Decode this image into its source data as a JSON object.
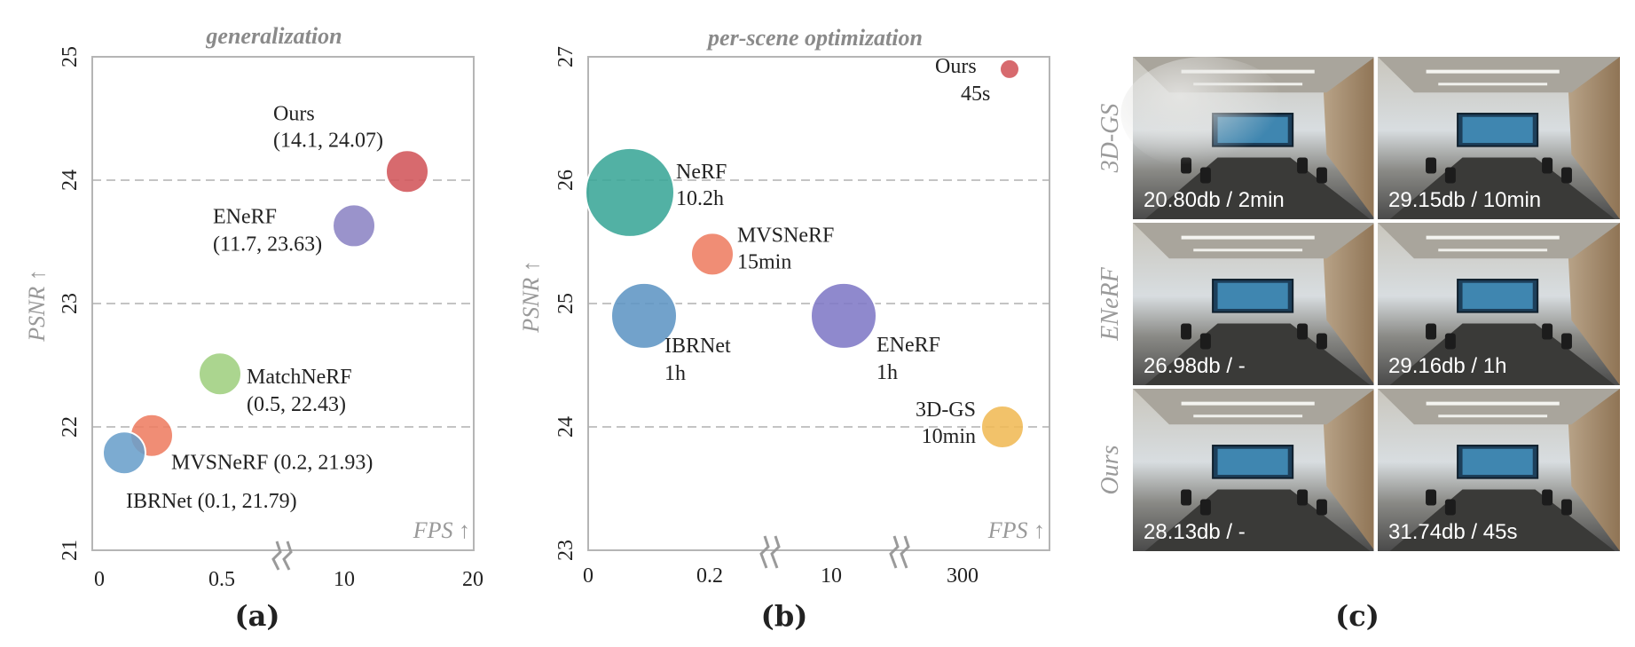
{
  "chart_data": [
    {
      "type": "scatter",
      "panel": "(a)",
      "title": "generalization",
      "xlabel": "FPS ↑",
      "ylabel": "PSNR ↑",
      "ylim": [
        21,
        25
      ],
      "yticks": [
        "21",
        "22",
        "23",
        "24",
        "25"
      ],
      "xticks": [
        "0",
        "0.5",
        "10",
        "20"
      ],
      "grid_y": [
        22,
        23,
        24
      ],
      "points": [
        {
          "name": "Ours",
          "label1": "Ours",
          "label2": "(14.1, 24.07)",
          "fps": 14.1,
          "psnr": 24.07,
          "color": "#d2555a",
          "size": "small"
        },
        {
          "name": "ENeRF",
          "label1": "ENeRF",
          "label2": "(11.7, 23.63)",
          "fps": 11.7,
          "psnr": 23.63,
          "color": "#8c84c4",
          "size": "small"
        },
        {
          "name": "MatchNeRF",
          "label1": "MatchNeRF",
          "label2": "(0.5, 22.43)",
          "fps": 0.5,
          "psnr": 22.43,
          "color": "#9fcf7f",
          "size": "small"
        },
        {
          "name": "MVSNeRF",
          "label1": "MVSNeRF (0.2, 21.93)",
          "label2": "",
          "fps": 0.2,
          "psnr": 21.93,
          "color": "#ee7d62",
          "size": "small"
        },
        {
          "name": "IBRNet",
          "label1": "IBRNet (0.1, 21.79)",
          "label2": "",
          "fps": 0.1,
          "psnr": 21.79,
          "color": "#6a9fcb",
          "size": "small"
        }
      ]
    },
    {
      "type": "scatter",
      "panel": "(b)",
      "title": "per-scene optimization",
      "xlabel": "FPS ↑",
      "ylabel": "PSNR ↑",
      "ylim": [
        23,
        27
      ],
      "yticks": [
        "23",
        "24",
        "25",
        "26",
        "27"
      ],
      "xticks": [
        "0",
        "0.2",
        "10",
        "300"
      ],
      "grid_y": [
        24,
        25,
        26
      ],
      "points": [
        {
          "name": "Ours",
          "label1": "Ours",
          "label2": "45s",
          "psnr": 26.9,
          "color": "#d2555a",
          "size": "tiny"
        },
        {
          "name": "NeRF",
          "label1": "NeRF",
          "label2": "10.2h",
          "psnr": 25.9,
          "color": "#3aa697",
          "size": "huge"
        },
        {
          "name": "MVSNeRF",
          "label1": "MVSNeRF",
          "label2": "15min",
          "psnr": 25.4,
          "color": "#ee7d62",
          "size": "small"
        },
        {
          "name": "IBRNet",
          "label1": "IBRNet",
          "label2": "1h",
          "psnr": 24.9,
          "color": "#5f95c4",
          "size": "large"
        },
        {
          "name": "ENeRF",
          "label1": "ENeRF",
          "label2": "1h",
          "psnr": 24.9,
          "color": "#8079c6",
          "size": "large"
        },
        {
          "name": "3D-GS",
          "label1": "3D-GS",
          "label2": "10min",
          "psnr": 24.0,
          "color": "#f0b955",
          "size": "small"
        }
      ]
    }
  ],
  "image_grid": {
    "panel": "(c)",
    "rows": [
      {
        "method": "3D-GS",
        "cells": [
          "20.80db / 2min",
          "29.15db / 10min"
        ]
      },
      {
        "method": "ENeRF",
        "cells": [
          "26.98db / -",
          "29.16db / 1h"
        ]
      },
      {
        "method": "Ours",
        "cells": [
          "28.13db / -",
          "31.74db / 45s"
        ]
      }
    ]
  },
  "captions": [
    "(a)",
    "(b)",
    "(c)"
  ]
}
